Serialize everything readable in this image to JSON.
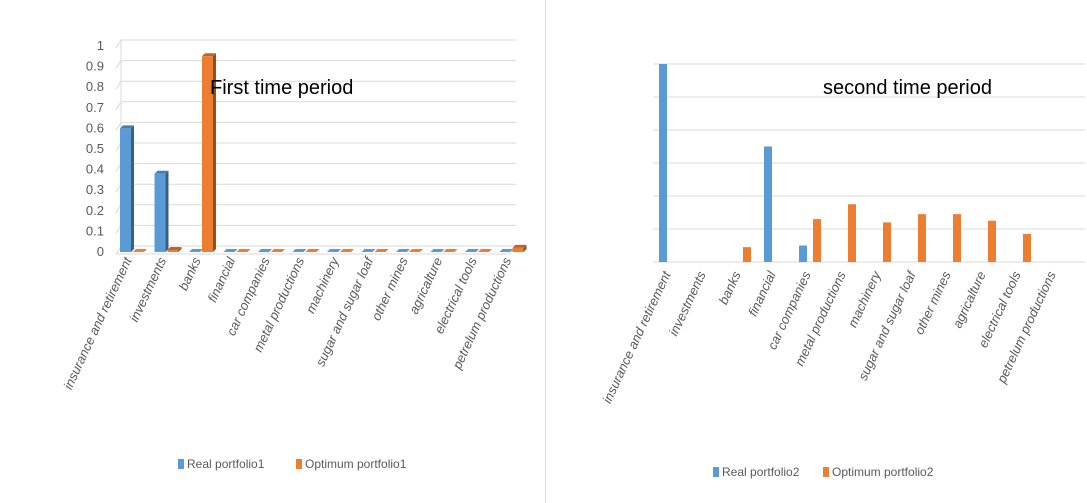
{
  "colors": {
    "real": "#5b9bd5",
    "optimum": "#ed7d31",
    "grid": "#d9d9d9",
    "text": "#595959"
  },
  "chart_data": [
    {
      "type": "bar",
      "title": "First time period",
      "categories": [
        "insurance and retirement",
        "investments",
        "banks",
        "financial",
        "car companies",
        "metal productions",
        "machinery",
        "sugar and sugar loaf",
        "other mines",
        "agricalture",
        "electrical tools",
        "petrelum productions"
      ],
      "series": [
        {
          "name": "Real portfolio1",
          "values": [
            0.6,
            0.38,
            0,
            0,
            0,
            0,
            0,
            0,
            0,
            0,
            0,
            0
          ]
        },
        {
          "name": "Optimum portfolio1",
          "values": [
            0,
            0.01,
            0.95,
            0,
            0,
            0,
            0,
            0,
            0,
            0,
            0,
            0.02
          ]
        }
      ],
      "ylim": [
        0,
        1
      ],
      "yticks": [
        "0",
        "0.1",
        "0.2",
        "0.3",
        "0.4",
        "0.5",
        "0.6",
        "0.7",
        "0.8",
        "0.9",
        "1"
      ],
      "grid": true,
      "style": "3d",
      "legend": "bottom"
    },
    {
      "type": "bar",
      "title": "second time period",
      "categories": [
        "insurance and retirement",
        "investments",
        "banks",
        "financial",
        "car companies",
        "metal productions",
        "machinery",
        "sugar and sugar loaf",
        "other mines",
        "agricalture",
        "electrical tools",
        "petrelum productions"
      ],
      "series": [
        {
          "name": "Real  portfolio2",
          "values": [
            0.6,
            0,
            0,
            0.35,
            0.05,
            0,
            0,
            0,
            0,
            0,
            0,
            0
          ]
        },
        {
          "name": "Optimum portfolio2",
          "values": [
            0,
            0,
            0.045,
            0,
            0.13,
            0.175,
            0.12,
            0.145,
            0.145,
            0.125,
            0.085,
            0
          ]
        }
      ],
      "ylim": [
        0,
        0.6
      ],
      "yticks": [],
      "grid": true,
      "style": "flat",
      "legend": "bottom"
    }
  ]
}
